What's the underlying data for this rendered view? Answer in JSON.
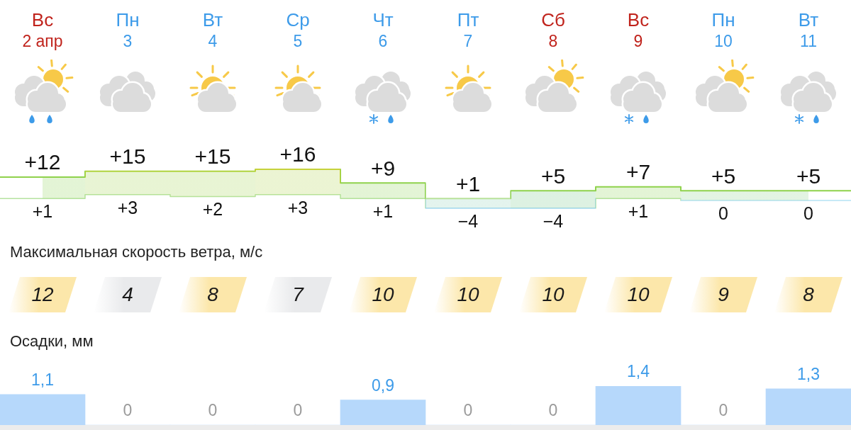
{
  "chart_data": [
    {
      "type": "step",
      "categories": [
        "Вс\n2 апр",
        "Пн\n3",
        "Вт\n4",
        "Ср\n5",
        "Чт\n6",
        "Пт\n7",
        "Сб\n8",
        "Вс\n9",
        "Пн\n10",
        "Вт\n11"
      ],
      "tick_labels": "x",
      "series": [
        {
          "values": [
            12,
            15,
            15,
            16,
            9,
            1,
            5,
            7,
            5,
            5
          ],
          "value_labels": [
            "+12",
            "+15",
            "+15",
            "+16",
            "+9",
            "+1",
            "+5",
            "+7",
            "+5",
            "+5"
          ],
          "colors": [
            "#8fd24c",
            "#b0d33f",
            "#b0d33f",
            "#c6d23a",
            "#8fd24c",
            "#b9e29a",
            "#8fd24c",
            "#8fd24c",
            "#8fd24c",
            "#8fd24c"
          ]
        },
        {
          "values": [
            1,
            3,
            2,
            3,
            1,
            -4,
            -4,
            1,
            0,
            0
          ],
          "value_labels": [
            "+1",
            "+3",
            "+2",
            "+3",
            "+1",
            "−4",
            "−4",
            "+1",
            "0",
            "0"
          ],
          "colors": [
            "#b6e3a0",
            "#b6e3a0",
            "#b6e3a0",
            "#b6e3a0",
            "#b6e3a0",
            "#8fd0f2",
            "#8fd0f2",
            "#b6e3a0",
            "#b4e2f5",
            "#b4e2f5"
          ]
        }
      ]
    },
    {
      "type": "heatmap",
      "title": "Максимальная скорость ветра, м/с",
      "categories": [
        null,
        null,
        null,
        null,
        null,
        null,
        null,
        null,
        null,
        null
      ],
      "y_categories": [
        null
      ],
      "cells": [
        [
          12,
          4,
          8,
          7,
          10,
          10,
          10,
          10,
          9,
          8
        ]
      ],
      "data_labels": true
    },
    {
      "type": "bar",
      "title": "Осадки, мм",
      "categories": [
        null,
        null,
        null,
        null,
        null,
        null,
        null,
        null,
        null,
        null
      ],
      "values": [
        1.1,
        0,
        0,
        0,
        0.9,
        0,
        0,
        1.4,
        0,
        1.3
      ],
      "value_labels": [
        "1,1",
        "0",
        "0",
        "0",
        "0,9",
        "0",
        "0",
        "1,4",
        "0",
        "1,3"
      ],
      "color": "#b6d8fb"
    }
  ]
}
